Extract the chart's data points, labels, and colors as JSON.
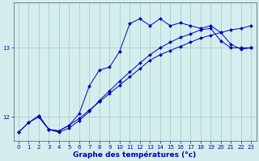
{
  "xlabel": "Graphe des températures (°c)",
  "ylabel": "",
  "bg_color": "#d4eeed",
  "line_color": "#0000bb",
  "grid_color": "#9ec8c8",
  "axis_color": "#445566",
  "text_color": "#0000bb",
  "xlim": [
    -0.5,
    23.5
  ],
  "ylim": [
    11.65,
    13.65
  ],
  "yticks": [
    12,
    13
  ],
  "xticks": [
    0,
    1,
    2,
    3,
    4,
    5,
    6,
    7,
    8,
    9,
    10,
    11,
    12,
    13,
    14,
    15,
    16,
    17,
    18,
    19,
    20,
    21,
    22,
    23
  ],
  "line1_x": [
    0,
    1,
    2,
    3,
    4,
    5,
    6,
    7,
    8,
    9,
    10,
    11,
    12,
    13,
    14,
    15,
    16,
    17,
    18,
    19,
    20,
    21,
    22,
    23
  ],
  "line1_y": [
    11.78,
    11.92,
    12.02,
    11.82,
    11.8,
    11.88,
    11.98,
    12.1,
    12.22,
    12.34,
    12.46,
    12.58,
    12.7,
    12.82,
    12.9,
    12.96,
    13.02,
    13.08,
    13.14,
    13.18,
    13.22,
    13.26,
    13.28,
    13.32
  ],
  "line2_x": [
    2,
    3,
    4,
    5,
    6,
    7,
    8,
    9,
    10,
    11,
    12,
    13,
    14,
    15,
    16,
    17,
    18,
    19,
    20,
    21,
    22,
    23
  ],
  "line2_y": [
    12.02,
    11.82,
    11.8,
    11.88,
    12.05,
    12.45,
    12.68,
    12.72,
    12.95,
    13.35,
    13.42,
    13.32,
    13.42,
    13.32,
    13.36,
    13.32,
    13.28,
    13.32,
    13.22,
    13.05,
    12.98,
    13.0
  ],
  "line3_x": [
    0,
    1,
    2,
    3,
    4,
    5,
    6,
    7,
    8,
    9,
    10,
    11,
    12,
    13,
    14,
    15,
    16,
    17,
    18,
    19,
    20,
    21,
    22,
    23
  ],
  "line3_y": [
    11.78,
    11.92,
    12.0,
    11.82,
    11.78,
    11.84,
    11.95,
    12.08,
    12.24,
    12.38,
    12.52,
    12.65,
    12.78,
    12.9,
    13.0,
    13.08,
    13.15,
    13.2,
    13.26,
    13.28,
    13.1,
    13.0,
    13.0,
    13.0
  ],
  "tick_fontsize": 5.0,
  "label_fontsize": 6.5,
  "marker": "D",
  "markersize": 2.0,
  "linewidth": 0.7
}
